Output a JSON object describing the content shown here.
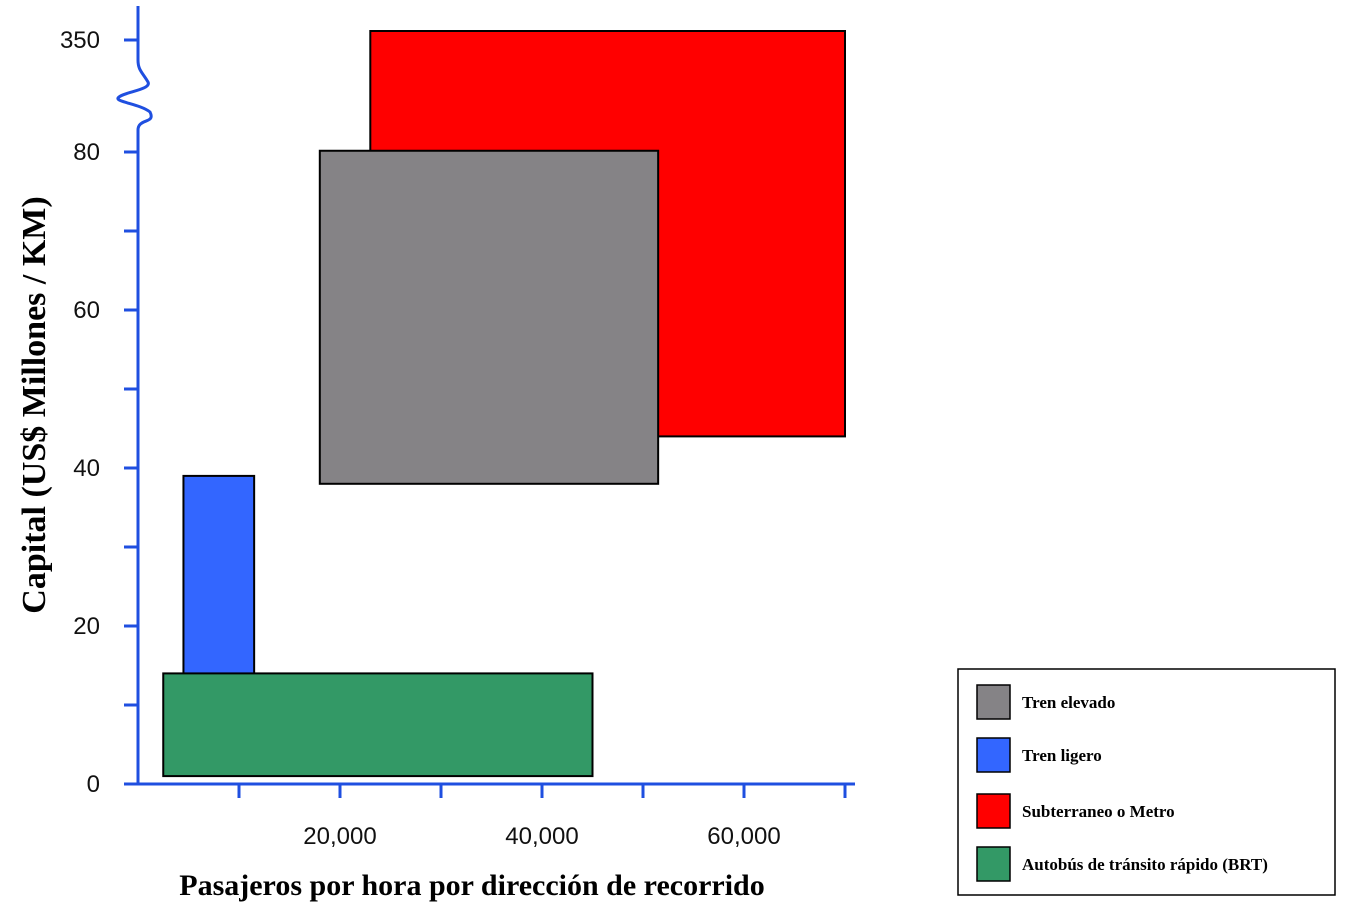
{
  "chart_data": {
    "type": "bar",
    "subtype": "range-rectangles",
    "xlabel": "Pasajeros por hora por dirección de recorrido",
    "ylabel": "Capital (US$ Millones / KM)",
    "xlim": [
      0,
      70000
    ],
    "ylim": [
      0,
      80
    ],
    "y_break": {
      "after": 80,
      "top_tick": 350
    },
    "x_ticks": [
      {
        "value": 20000,
        "label": "20,000"
      },
      {
        "value": 40000,
        "label": "40,000"
      },
      {
        "value": 60000,
        "label": "60,000"
      }
    ],
    "x_minor_ticks": [
      10000,
      30000,
      50000,
      70000
    ],
    "y_ticks": [
      {
        "value": 0,
        "label": "0"
      },
      {
        "value": 20,
        "label": "20"
      },
      {
        "value": 40,
        "label": "40"
      },
      {
        "value": 60,
        "label": "60"
      },
      {
        "value": 80,
        "label": "80"
      },
      {
        "value": 350,
        "label": "350"
      }
    ],
    "y_minor_ticks": [
      10,
      30,
      50,
      70
    ],
    "series": [
      {
        "name": "Subterraneo o Metro",
        "color": "#ff0000",
        "x": [
          23000,
          70000
        ],
        "y": [
          44,
          350
        ]
      },
      {
        "name": "Tren elevado",
        "color": "#858386",
        "x": [
          18000,
          51500
        ],
        "y": [
          38,
          83
        ]
      },
      {
        "name": "Tren ligero",
        "color": "#3366ff",
        "x": [
          4500,
          11500
        ],
        "y": [
          12,
          39
        ]
      },
      {
        "name": "Autobús de tránsito rápido (BRT)",
        "color": "#339966",
        "x": [
          2500,
          45000
        ],
        "y": [
          1,
          14
        ]
      }
    ],
    "legend": {
      "position": "bottom-right",
      "items": [
        {
          "label": "Tren elevado",
          "color": "#858386"
        },
        {
          "label": "Tren ligero",
          "color": "#3366ff"
        },
        {
          "label": "Subterraneo o Metro",
          "color": "#ff0000"
        },
        {
          "label": "Autobús de tránsito rápido (BRT)",
          "color": "#339966"
        }
      ]
    },
    "axis_color": "#1f4fe0",
    "grid": false
  }
}
